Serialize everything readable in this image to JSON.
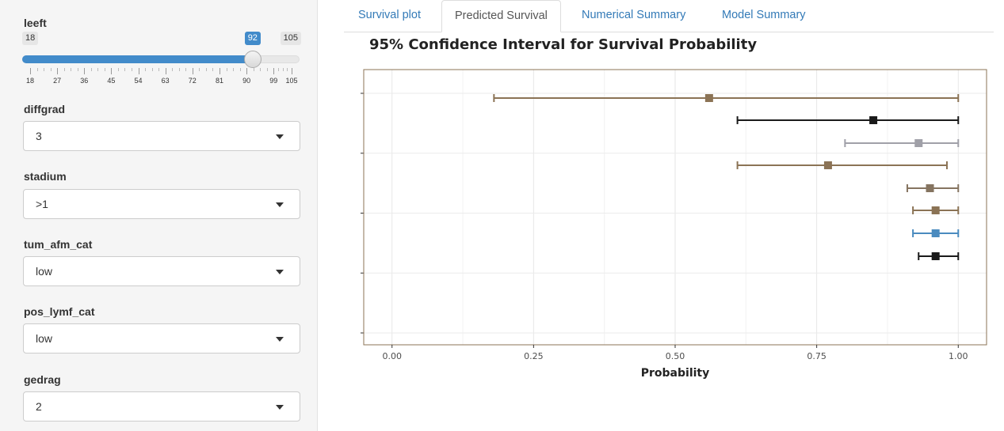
{
  "sidebar": {
    "slider": {
      "label": "leeft",
      "min": 18,
      "max": 105,
      "value": 92,
      "min_label": "18",
      "max_label": "105",
      "value_label": "92",
      "ticks": [
        "18",
        "27",
        "36",
        "45",
        "54",
        "63",
        "72",
        "81",
        "90",
        "99",
        "105"
      ]
    },
    "selects": [
      {
        "label": "diffgrad",
        "value": "3"
      },
      {
        "label": "stadium",
        "value": ">1"
      },
      {
        "label": "tum_afm_cat",
        "value": "low"
      },
      {
        "label": "pos_lymf_cat",
        "value": "low"
      },
      {
        "label": "gedrag",
        "value": "2"
      }
    ]
  },
  "tabs": [
    {
      "label": "Survival plot",
      "active": false
    },
    {
      "label": "Predicted Survival",
      "active": true
    },
    {
      "label": "Numerical Summary",
      "active": false
    },
    {
      "label": "Model Summary",
      "active": false
    }
  ],
  "chart_data": {
    "type": "scatter",
    "title": "95% Confidence Interval for Survival Probability",
    "xlabel": "Probability",
    "ylabel": "",
    "xlim": [
      -0.05,
      1.05
    ],
    "x_ticks": [
      "0.00",
      "0.25",
      "0.50",
      "0.75",
      "1.00"
    ],
    "x_tick_values": [
      0,
      0.25,
      0.5,
      0.75,
      1.0
    ],
    "grid": true,
    "legend": "none",
    "intervals": [
      {
        "estimate": 0.56,
        "lower": 0.18,
        "upper": 1.0,
        "color": "#8b7355"
      },
      {
        "estimate": 0.85,
        "lower": 0.61,
        "upper": 1.0,
        "color": "#1a1a1a"
      },
      {
        "estimate": 0.93,
        "lower": 0.8,
        "upper": 1.0,
        "color": "#a0a0a8"
      },
      {
        "estimate": 0.77,
        "lower": 0.61,
        "upper": 0.98,
        "color": "#8b7355"
      },
      {
        "estimate": 0.95,
        "lower": 0.91,
        "upper": 1.0,
        "color": "#857460"
      },
      {
        "estimate": 0.96,
        "lower": 0.92,
        "upper": 1.0,
        "color": "#8b7355"
      },
      {
        "estimate": 0.96,
        "lower": 0.92,
        "upper": 1.0,
        "color": "#4a8bbf"
      },
      {
        "estimate": 0.96,
        "lower": 0.93,
        "upper": 1.0,
        "color": "#1a1a1a"
      }
    ]
  }
}
